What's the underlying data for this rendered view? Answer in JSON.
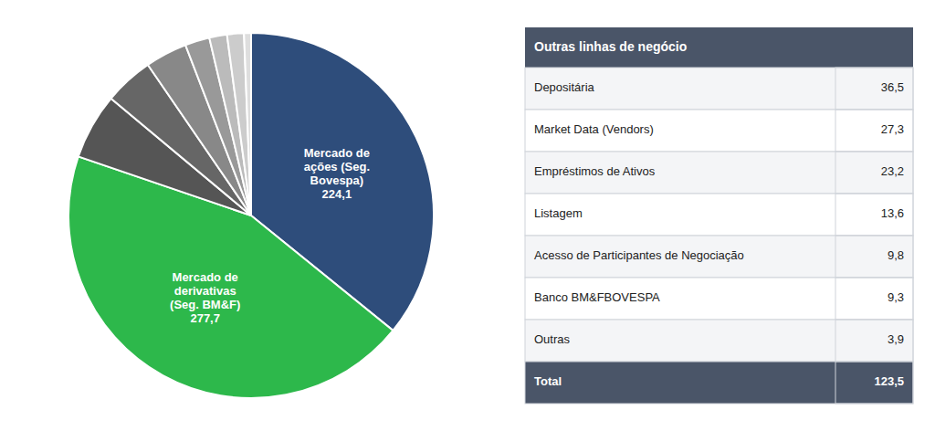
{
  "chart_data": [
    {
      "type": "pie",
      "values": [
        224.1,
        277.7,
        36.5,
        27.3,
        23.2,
        13.6,
        9.8,
        9.3,
        3.9
      ],
      "value_labels": [
        "Mercado de\nações (Seg.\nBovespa)\n224,1",
        "Mercado de\nderivativas\n(Seg. BM&F)\n277,7",
        null,
        null,
        null,
        null,
        null,
        null,
        null
      ],
      "colors": [
        "#2E4D7B",
        "#2DB84B",
        "#555555",
        "#666666",
        "#888888",
        "#999999",
        "#BBBBBB",
        "#CCCCCC",
        "#DEDEDE"
      ]
    },
    {
      "type": "table",
      "title": "Outras linhas de negócio",
      "categories": [
        "Depositária",
        "Market Data (Vendors)",
        "Empréstimos de Ativos",
        "Listagem",
        "Acesso de Participantes de Negociação",
        "Banco BM&FBOVESPA",
        "Outras",
        "Total"
      ],
      "values": [
        36.5,
        27.3,
        23.2,
        13.6,
        9.8,
        9.3,
        3.9,
        123.5
      ],
      "value_labels": [
        "36,5",
        "27,3",
        "23,2",
        "13,6",
        "9,8",
        "9,3",
        "3,9",
        "123,5"
      ]
    }
  ]
}
